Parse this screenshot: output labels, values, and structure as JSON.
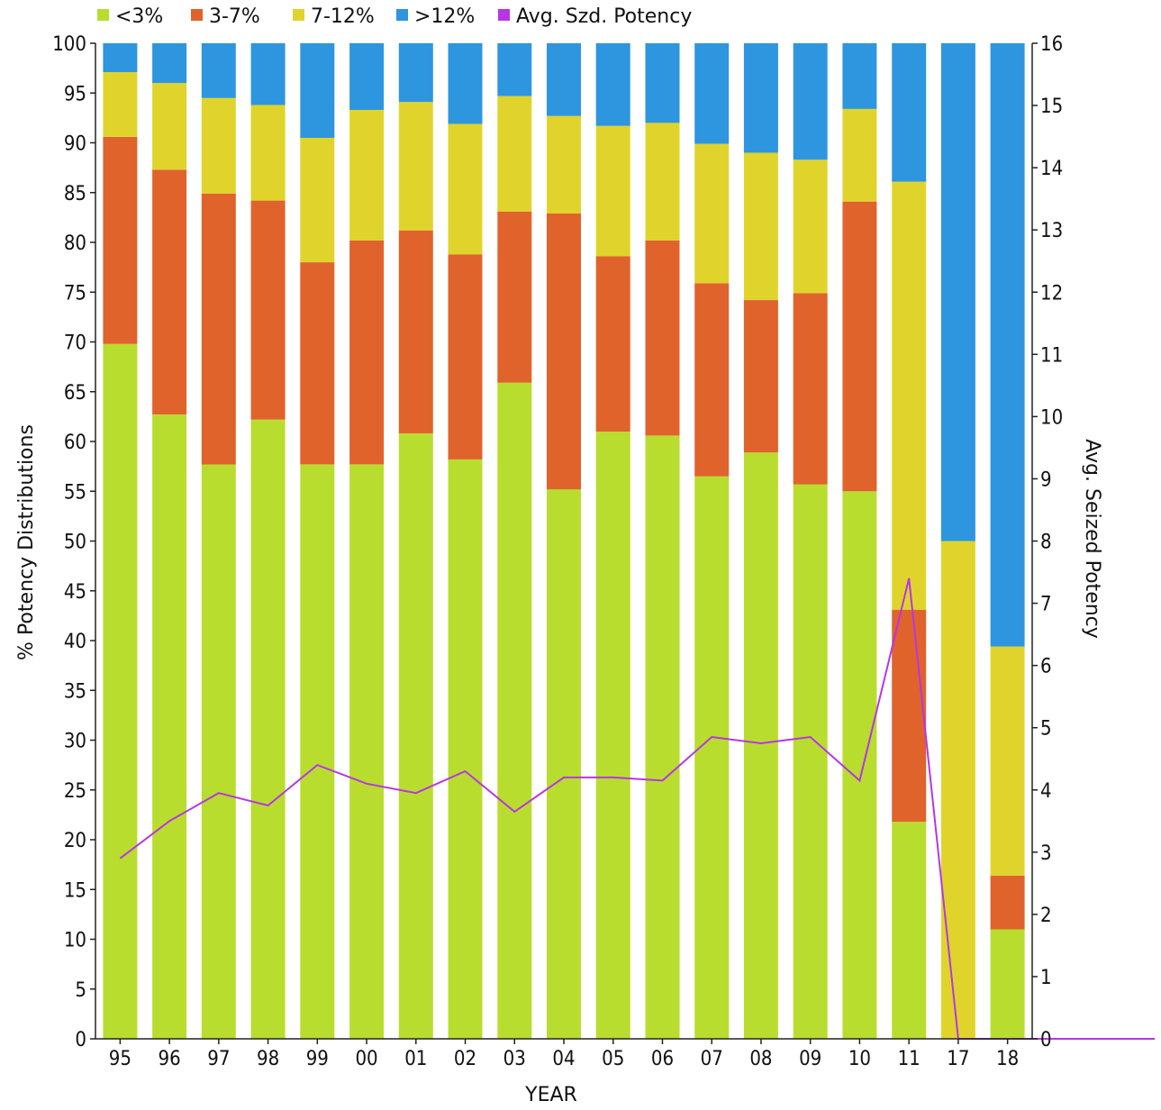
{
  "chart_data": {
    "type": "bar",
    "stacked": true,
    "categories": [
      "95",
      "96",
      "97",
      "98",
      "99",
      "00",
      "01",
      "02",
      "03",
      "04",
      "05",
      "06",
      "07",
      "08",
      "09",
      "10",
      "11",
      "17",
      "18"
    ],
    "series": [
      {
        "name": "<3%",
        "color": "#b9dd2e",
        "values": [
          69.8,
          62.7,
          57.7,
          62.2,
          57.7,
          57.7,
          60.8,
          58.2,
          65.9,
          55.2,
          61.0,
          60.6,
          56.5,
          58.9,
          55.7,
          55.0,
          21.8,
          0,
          11.0
        ]
      },
      {
        "name": "3-7%",
        "color": "#e0632c",
        "values": [
          20.8,
          24.6,
          27.2,
          22.0,
          20.3,
          22.5,
          20.4,
          20.6,
          17.2,
          27.7,
          17.6,
          19.6,
          19.4,
          15.3,
          19.2,
          29.1,
          21.3,
          0,
          5.4
        ]
      },
      {
        "name": "7-12%",
        "color": "#e0d42c",
        "values": [
          6.5,
          8.7,
          9.6,
          9.6,
          12.5,
          13.1,
          12.9,
          13.1,
          11.6,
          9.8,
          13.1,
          11.8,
          14.0,
          14.8,
          13.4,
          9.3,
          43.0,
          50.0,
          23.0
        ]
      },
      {
        "name": ">12%",
        "color": "#2e96de",
        "values": [
          2.9,
          4.0,
          5.5,
          6.2,
          9.5,
          6.7,
          5.9,
          8.1,
          5.3,
          7.3,
          8.3,
          8.0,
          10.1,
          11.0,
          11.7,
          6.6,
          13.9,
          50.0,
          60.6
        ]
      }
    ],
    "line_series": {
      "name": "Avg. Szd. Potency",
      "color": "#b636e6",
      "values": [
        2.9,
        3.5,
        3.95,
        3.75,
        4.4,
        4.1,
        3.95,
        4.3,
        3.65,
        4.2,
        4.2,
        4.15,
        4.85,
        4.75,
        4.85,
        4.15,
        7.4,
        0,
        0
      ]
    },
    "ylabel": "% Potency Distributions",
    "y2label": "Avg. Seized Potency",
    "xlabel": "YEAR",
    "ylim": [
      0,
      100
    ],
    "y2lim": [
      0,
      16
    ],
    "y_ticks": [
      "0",
      "5",
      "10",
      "15",
      "20",
      "25",
      "30",
      "35",
      "40",
      "45",
      "50",
      "55",
      "60",
      "65",
      "70",
      "75",
      "80",
      "85",
      "90",
      "95",
      "100"
    ],
    "y2_ticks": [
      "0",
      "1",
      "2",
      "3",
      "4",
      "5",
      "6",
      "7",
      "8",
      "9",
      "10",
      "11",
      "12",
      "13",
      "14",
      "15",
      "16"
    ],
    "legend_position": "top",
    "grid": false
  }
}
